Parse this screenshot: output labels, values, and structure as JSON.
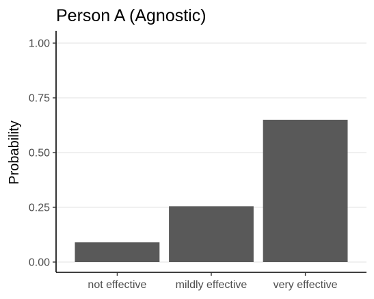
{
  "chart_data": {
    "type": "bar",
    "title": "Person A (Agnostic)",
    "xlabel": "",
    "ylabel": "Probability",
    "categories": [
      "not effective",
      "mildly effective",
      "very effective"
    ],
    "values": [
      0.09,
      0.255,
      0.65
    ],
    "ylim": [
      0,
      1.04
    ],
    "yticks": [
      0,
      0.25,
      0.5,
      0.75,
      1.0
    ],
    "ytick_labels": [
      "0.00",
      "0.25",
      "0.50",
      "0.75",
      "1.00"
    ],
    "grid": "horizontal",
    "legend": "none",
    "bar_color": "#595959"
  }
}
